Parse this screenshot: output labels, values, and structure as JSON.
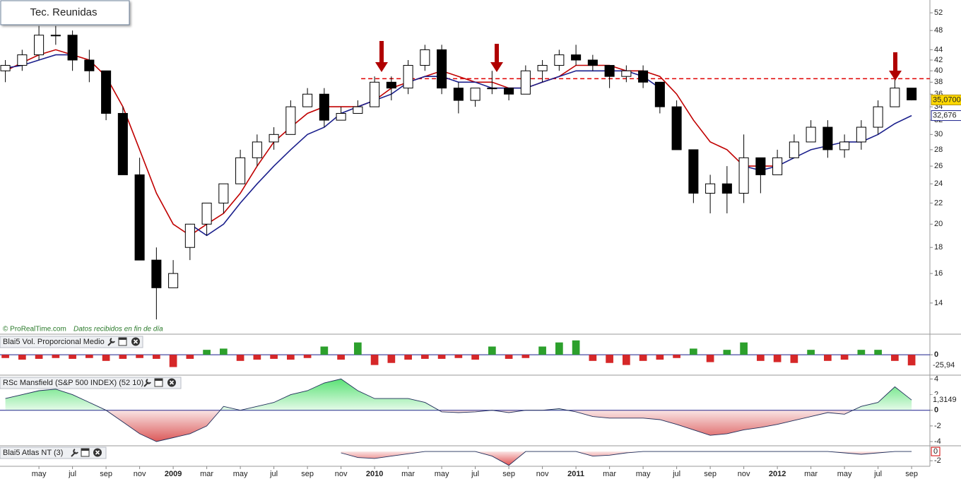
{
  "chart_data": [
    {
      "type": "candlestick",
      "title": "Tec. Reunidas",
      "source": "© ProRealTime.com",
      "note": "Datos recibidos en fin de día",
      "log": true,
      "ylim": [
        12.2,
        55.1
      ],
      "yticks": [
        52,
        48,
        44,
        42,
        40,
        38,
        36,
        34,
        32,
        30,
        28,
        26,
        24,
        22,
        20,
        18,
        16,
        14
      ],
      "xlim": [
        1.68,
        57.09
      ],
      "xticks": [
        {
          "value": 4,
          "label": "may"
        },
        {
          "value": 6,
          "label": "jul"
        },
        {
          "value": 8,
          "label": "sep"
        },
        {
          "value": 10,
          "label": "nov"
        },
        {
          "value": 12,
          "label": "2009"
        },
        {
          "value": 14,
          "label": "mar"
        },
        {
          "value": 16,
          "label": "may"
        },
        {
          "value": 18,
          "label": "jul"
        },
        {
          "value": 20,
          "label": "sep"
        },
        {
          "value": 22,
          "label": "nov"
        },
        {
          "value": 24,
          "label": "2010"
        },
        {
          "value": 26,
          "label": "mar"
        },
        {
          "value": 28,
          "label": "may"
        },
        {
          "value": 30,
          "label": "jul"
        },
        {
          "value": 32,
          "label": "sep"
        },
        {
          "value": 34,
          "label": "nov"
        },
        {
          "value": 36,
          "label": "2011"
        },
        {
          "value": 38,
          "label": "mar"
        },
        {
          "value": 40,
          "label": "may"
        },
        {
          "value": 42,
          "label": "jul"
        },
        {
          "value": 44,
          "label": "sep"
        },
        {
          "value": 46,
          "label": "nov"
        },
        {
          "value": 48,
          "label": "2012"
        },
        {
          "value": 50,
          "label": "mar"
        },
        {
          "value": 52,
          "label": "may"
        },
        {
          "value": 54,
          "label": "jul"
        },
        {
          "value": 56,
          "label": "sep"
        }
      ],
      "x": [
        2,
        3,
        4,
        5,
        6,
        7,
        8,
        9,
        10,
        11,
        12,
        13,
        14,
        15,
        16,
        17,
        18,
        19,
        20,
        21,
        22,
        23,
        24,
        25,
        26,
        27,
        28,
        29,
        30,
        31,
        32,
        33,
        34,
        35,
        36,
        37,
        38,
        39,
        40,
        41,
        42,
        43,
        44,
        45,
        46,
        47,
        48,
        49,
        50,
        51,
        52,
        53,
        54,
        55,
        56
      ],
      "open": [
        40,
        41,
        43,
        47,
        47,
        42,
        40,
        33,
        25,
        17,
        15,
        18,
        20,
        22,
        24,
        27,
        29,
        30,
        34,
        36,
        32,
        33,
        34,
        38,
        37,
        41,
        44,
        37,
        35,
        37,
        37,
        36,
        40,
        41,
        43,
        42,
        41,
        39,
        40,
        38,
        34,
        28,
        23,
        24,
        23,
        27,
        25,
        27,
        29,
        31,
        28,
        29,
        31,
        34,
        37
      ],
      "high": [
        42,
        44,
        49,
        49,
        48,
        44,
        40,
        34,
        27,
        18,
        17,
        20,
        22,
        24,
        28,
        30,
        31,
        35,
        37,
        37,
        34,
        35,
        39,
        39,
        42,
        45,
        45,
        38,
        37,
        40,
        37,
        41,
        42,
        44,
        45,
        43,
        41,
        41,
        41,
        38,
        35,
        28,
        25,
        26,
        30,
        27,
        28,
        30,
        32,
        32,
        30,
        32,
        35,
        39,
        37
      ],
      "low": [
        38,
        40,
        42,
        45,
        40,
        38,
        32,
        25,
        17,
        13,
        15,
        17,
        19,
        21,
        24,
        26,
        28,
        30,
        34,
        31,
        32,
        33,
        34,
        35,
        36,
        40,
        36,
        33,
        34,
        36,
        35,
        36,
        38,
        40,
        41,
        40,
        37,
        38,
        37,
        33,
        28,
        22,
        21,
        21,
        22,
        23,
        25,
        27,
        29,
        27,
        27,
        28,
        30,
        34,
        35
      ],
      "close": [
        41,
        43,
        47,
        47,
        42,
        40,
        33,
        25,
        17,
        15,
        16,
        20,
        22,
        24,
        27,
        29,
        30,
        34,
        36,
        32,
        33,
        34,
        38,
        37,
        41,
        44,
        37,
        35,
        37,
        37,
        36,
        40,
        41,
        43,
        42,
        41,
        39,
        40,
        38,
        34,
        28,
        23,
        24,
        23,
        27,
        25,
        27,
        29,
        31,
        28,
        29,
        31,
        34,
        37,
        35.07
      ],
      "close_labels": [
        null,
        null,
        null,
        null,
        null,
        null,
        null,
        null,
        null,
        null,
        null,
        null,
        null,
        null,
        null,
        null,
        null,
        null,
        null,
        null,
        null,
        null,
        null,
        null,
        null,
        null,
        null,
        null,
        null,
        null,
        null,
        null,
        null,
        null,
        null,
        null,
        null,
        null,
        null,
        null,
        null,
        null,
        null,
        null,
        null,
        null,
        null,
        null,
        null,
        null,
        null,
        null,
        null,
        null,
        "35,0700"
      ],
      "up_color": "#ffffff",
      "down_color": "#000000",
      "lines": [
        {
          "color": "#c00000",
          "values": [
            40,
            41.5,
            43,
            44,
            43,
            42,
            39,
            34,
            28,
            23,
            20,
            19,
            20,
            21,
            23,
            26,
            29,
            31,
            33,
            34,
            34,
            34,
            35,
            37,
            38,
            39,
            40,
            39,
            38,
            38,
            37,
            37,
            38,
            39,
            41,
            41,
            41,
            40,
            40,
            39,
            36,
            32,
            29,
            28,
            26,
            26,
            26,
            null,
            null,
            null,
            null,
            null,
            null,
            null,
            null
          ]
        },
        {
          "color": "#1a1f8c",
          "values": [
            40.5,
            41,
            42,
            43,
            43,
            null,
            null,
            null,
            null,
            null,
            null,
            20,
            19,
            20,
            22,
            24,
            26,
            28,
            30,
            31,
            33,
            34,
            35,
            36,
            38,
            39,
            39,
            38,
            38,
            37,
            37,
            37,
            38,
            39,
            40,
            40,
            40,
            40,
            39,
            37,
            null,
            null,
            null,
            null,
            26,
            25.5,
            26,
            27,
            28,
            28.5,
            29,
            29,
            30,
            31.5,
            32.676
          ],
          "value_labels": [
            null,
            null,
            null,
            null,
            null,
            null,
            null,
            null,
            null,
            null,
            null,
            null,
            null,
            null,
            null,
            null,
            null,
            null,
            null,
            null,
            null,
            null,
            null,
            null,
            null,
            null,
            null,
            null,
            null,
            null,
            null,
            null,
            null,
            null,
            null,
            null,
            null,
            null,
            null,
            null,
            null,
            null,
            null,
            null,
            null,
            null,
            null,
            null,
            null,
            null,
            null,
            null,
            null,
            null,
            "32,676"
          ]
        }
      ],
      "resistance": {
        "value": 38.6,
        "color": "#e00000"
      }
    },
    {
      "type": "bar",
      "title": "Blai5 Vol. Proporcional Medio",
      "ylim": [
        -48,
        45
      ],
      "yticks": [
        0
      ],
      "positive_color": "#2ca02c",
      "negative_color": "#d62728",
      "x": [
        2,
        3,
        4,
        5,
        6,
        7,
        8,
        9,
        10,
        11,
        12,
        13,
        14,
        15,
        16,
        17,
        18,
        19,
        20,
        21,
        22,
        23,
        24,
        25,
        26,
        27,
        28,
        29,
        30,
        31,
        32,
        33,
        34,
        35,
        36,
        37,
        38,
        39,
        40,
        41,
        42,
        43,
        44,
        45,
        46,
        47,
        48,
        49,
        50,
        51,
        52,
        53,
        54,
        55,
        56
      ],
      "values": [
        -8,
        -12,
        -10,
        -8,
        -10,
        -8,
        -15,
        -10,
        -8,
        -10,
        -30,
        -10,
        12,
        15,
        -15,
        -12,
        -10,
        -12,
        -8,
        20,
        -12,
        30,
        -25,
        -20,
        -12,
        -10,
        -10,
        -8,
        -12,
        20,
        -10,
        -8,
        20,
        30,
        35,
        -15,
        -20,
        -25,
        -15,
        -12,
        -8,
        15,
        -18,
        12,
        30,
        -15,
        -18,
        -20,
        12,
        -15,
        -12,
        12,
        12,
        -15,
        -25.94
      ],
      "value_labels": [
        null,
        null,
        null,
        null,
        null,
        null,
        null,
        null,
        null,
        null,
        null,
        null,
        null,
        null,
        null,
        null,
        null,
        null,
        null,
        null,
        null,
        null,
        null,
        null,
        null,
        null,
        null,
        null,
        null,
        null,
        null,
        null,
        null,
        null,
        null,
        null,
        null,
        null,
        null,
        null,
        null,
        null,
        null,
        null,
        null,
        null,
        null,
        null,
        null,
        null,
        null,
        null,
        null,
        null,
        "-25,94"
      ]
    },
    {
      "type": "area",
      "title": "RSc Mansfield (S&P 500 INDEX) (52 10)",
      "ylim": [
        -4.45,
        4.4
      ],
      "yticks": [
        4,
        2,
        0,
        -2,
        -4
      ],
      "positive_color": "#4ddf6a",
      "negative_color": "#d84a4a",
      "x": [
        2,
        3,
        4,
        5,
        6,
        7,
        8,
        9,
        10,
        11,
        12,
        13,
        14,
        15,
        16,
        17,
        18,
        19,
        20,
        21,
        22,
        23,
        24,
        25,
        26,
        27,
        28,
        29,
        30,
        31,
        32,
        33,
        34,
        35,
        36,
        37,
        38,
        39,
        40,
        41,
        42,
        43,
        44,
        45,
        46,
        47,
        48,
        49,
        50,
        51,
        52,
        53,
        54,
        55,
        56
      ],
      "values": [
        1.5,
        2,
        2.5,
        2.7,
        2,
        1,
        0,
        -1.5,
        -3,
        -4,
        -3.5,
        -3,
        -2,
        0.5,
        0,
        0.5,
        1,
        2,
        2.5,
        3.5,
        4,
        2.5,
        1.5,
        1.5,
        1.5,
        1,
        -0.2,
        -0.3,
        -0.2,
        0,
        -0.3,
        0,
        0,
        0.2,
        -0.2,
        -0.8,
        -1,
        -1,
        -1,
        -1.2,
        -1.8,
        -2.5,
        -3.2,
        -3,
        -2.5,
        -2.2,
        -1.8,
        -1.3,
        -0.8,
        -0.3,
        -0.5,
        0.5,
        1,
        3,
        1.3149
      ],
      "value_labels": [
        null,
        null,
        null,
        null,
        null,
        null,
        null,
        null,
        null,
        null,
        null,
        null,
        null,
        null,
        null,
        null,
        null,
        null,
        null,
        null,
        null,
        null,
        null,
        null,
        null,
        null,
        null,
        null,
        null,
        null,
        null,
        null,
        null,
        null,
        null,
        null,
        null,
        null,
        null,
        null,
        null,
        null,
        null,
        null,
        null,
        null,
        null,
        null,
        null,
        null,
        null,
        null,
        null,
        null,
        "1,3149"
      ]
    },
    {
      "type": "area",
      "title": "Blai5 Atlas NT (3)",
      "ylim": [
        -3.2,
        1.08
      ],
      "yticks": [
        -2
      ],
      "positive_color": "#4ddf6a",
      "negative_color": "#e04848",
      "x": [
        2,
        3,
        4,
        5,
        6,
        7,
        8,
        9,
        10,
        11,
        12,
        13,
        14,
        15,
        16,
        17,
        18,
        19,
        20,
        21,
        22,
        23,
        24,
        25,
        26,
        27,
        28,
        29,
        30,
        31,
        32,
        33,
        34,
        35,
        36,
        37,
        38,
        39,
        40,
        41,
        42,
        43,
        44,
        45,
        46,
        47,
        48,
        49,
        50,
        51,
        52,
        53,
        54,
        55,
        56
      ],
      "values": [
        null,
        null,
        null,
        null,
        null,
        null,
        null,
        null,
        null,
        null,
        null,
        null,
        null,
        null,
        null,
        null,
        null,
        null,
        null,
        null,
        -0.3,
        -1.3,
        -1.5,
        -1,
        -0.5,
        0,
        0,
        0,
        0,
        -1,
        -3,
        0,
        0,
        0,
        0,
        -1,
        -0.8,
        -0.3,
        0,
        0,
        0,
        0,
        0,
        0,
        0,
        0,
        0,
        0,
        0,
        0,
        -0.3,
        -0.6,
        -0.3,
        0,
        0
      ]
    }
  ]
}
